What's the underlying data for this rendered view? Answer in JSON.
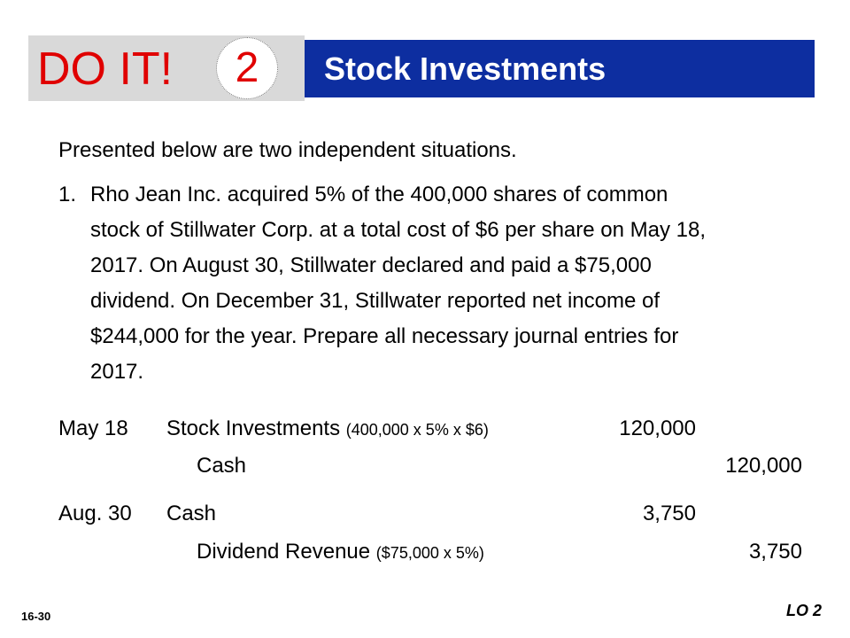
{
  "header": {
    "doit_label": "DO IT!",
    "number": "2",
    "title": "Stock Investments"
  },
  "intro": "Presented below are two independent situations.",
  "item": {
    "number": "1.",
    "lines": [
      "Rho Jean Inc. acquired 5% of the 400,000 shares of common",
      "stock of Stillwater Corp. at a total cost of $6 per share on May 18,",
      "2017. On August 30, Stillwater declared and paid a $75,000",
      "dividend. On December 31, Stillwater reported net income of",
      "$244,000 for the year. Prepare all necessary journal entries for",
      "2017."
    ]
  },
  "journal": [
    {
      "date": "May 18",
      "debit_account": "Stock Investments",
      "debit_note": "(400,000 x 5% x $6)",
      "debit_amount": "120,000",
      "credit_account": "Cash",
      "credit_note": "",
      "credit_amount": "120,000"
    },
    {
      "date": "Aug. 30",
      "debit_account": "Cash",
      "debit_note": "",
      "debit_amount": "3,750",
      "credit_account": "Dividend Revenue",
      "credit_note": "($75,000 x 5%)",
      "credit_amount": "3,750"
    }
  ],
  "footer": {
    "slide_number": "16-30",
    "lo": "LO 2"
  },
  "colors": {
    "accent_red": "#e00000",
    "title_blue": "#0d2ea0",
    "badge_gray": "#d9d9d9"
  }
}
